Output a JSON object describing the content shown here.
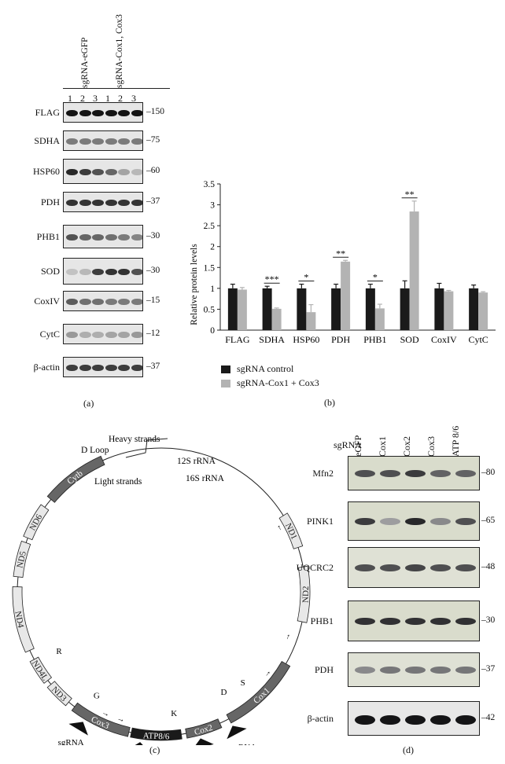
{
  "panel_a": {
    "group1": "sgRNA-eGFP",
    "group2": "sgRNA-Cox1, Cox3",
    "lanes": [
      "1",
      "2",
      "3",
      "1",
      "2",
      "3"
    ],
    "rows": [
      {
        "label": "FLAG",
        "mw": "150"
      },
      {
        "label": "SDHA",
        "mw": "75"
      },
      {
        "label": "HSP60",
        "mw": "60"
      },
      {
        "label": "PDH",
        "mw": "37"
      },
      {
        "label": "PHB1",
        "mw": "30"
      },
      {
        "label": "SOD",
        "mw": "30"
      },
      {
        "label": "CoxIV",
        "mw": "15"
      },
      {
        "label": "CytC",
        "mw": "12"
      },
      {
        "label": "β-actin",
        "mw": "37"
      }
    ],
    "letter": "(a)"
  },
  "chart_data": {
    "type": "bar",
    "ylabel": "Relative protein levels",
    "ylim": [
      0,
      3.5
    ],
    "yticks": [
      "0",
      "0.5",
      "1",
      "1.5",
      "2",
      "2.5",
      "3",
      "3.5"
    ],
    "categories": [
      "FLAG",
      "SDHA",
      "HSP60",
      "PDH",
      "PHB1",
      "SOD",
      "CoxIV",
      "CytC"
    ],
    "series": [
      {
        "name": "sgRNA control",
        "color": "#1a1a1a",
        "values": [
          1.0,
          1.0,
          1.0,
          1.0,
          1.0,
          1.0,
          1.0,
          1.0
        ],
        "errors": [
          0.1,
          0.05,
          0.1,
          0.1,
          0.1,
          0.18,
          0.12,
          0.08
        ]
      },
      {
        "name": "sgRNA-Cox1 + Cox3",
        "color": "#b3b3b3",
        "values": [
          0.97,
          0.51,
          0.43,
          1.64,
          0.52,
          2.84,
          0.93,
          0.9
        ],
        "errors": [
          0.05,
          0.02,
          0.18,
          0.03,
          0.1,
          0.25,
          0.02,
          0.02
        ]
      }
    ],
    "significance": [
      "",
      "***",
      "*",
      "**",
      "*",
      "**",
      "",
      ""
    ],
    "legend_position": "bottom-left",
    "letter": "(b)"
  },
  "panel_c": {
    "heavy": "Heavy strands",
    "light": "Light strands",
    "dloop": "D Loop",
    "rrna12": "12S rRNA",
    "rrna16": "16S rRNA",
    "genes": {
      "ND1": "ND1",
      "ND2": "ND2",
      "Cox1": "Cox1",
      "Cox2": "Cox2",
      "ATP": "ATP8/6",
      "Cox3": "Cox3",
      "ND3": "ND3",
      "ND4L": "ND4L",
      "ND4": "ND4",
      "ND5": "ND5",
      "ND6": "ND6",
      "Cytb": "Cytb"
    },
    "trna": {
      "D": "D",
      "S": "S",
      "K": "K",
      "G": "G",
      "R": "R"
    },
    "sgrna": "sgRNA",
    "letter": "(c)"
  },
  "panel_d": {
    "row_header": "sgRNA",
    "columns": [
      "eGFP",
      "Cox1",
      "Cox2",
      "Cox3",
      "ATP 8/6"
    ],
    "rows": [
      {
        "label": "Mfn2",
        "mw": "80"
      },
      {
        "label": "PINK1",
        "mw": "65"
      },
      {
        "label": "UQCRC2",
        "mw": "48"
      },
      {
        "label": "PHB1",
        "mw": "30"
      },
      {
        "label": "PDH",
        "mw": "37"
      },
      {
        "label": "β-actin",
        "mw": "42"
      }
    ],
    "letter": "(d)"
  }
}
